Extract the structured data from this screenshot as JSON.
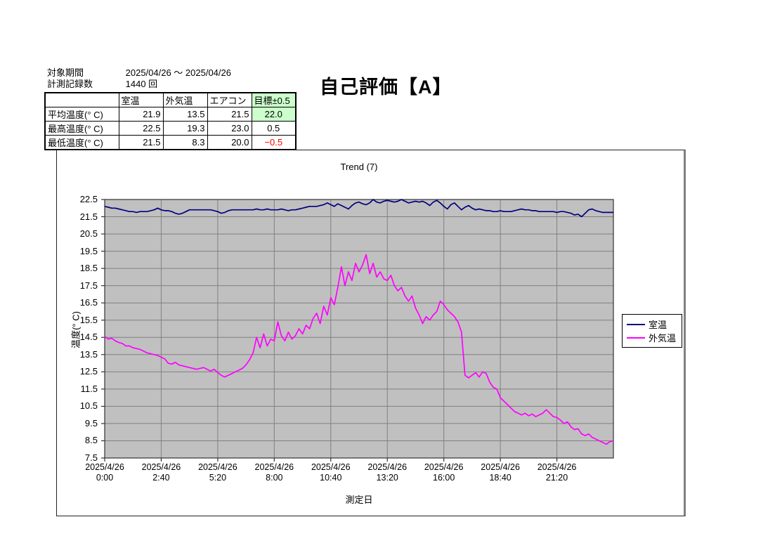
{
  "header": {
    "period_label": "対象期間",
    "period_value": "2025/04/26 ～ 2025/04/26",
    "count_label": "計測記録数",
    "count_value": "1440 回",
    "evaluation_title": "自己評価【A】"
  },
  "stats_table": {
    "col_headers": [
      "",
      "室温",
      "外気温",
      "エアコン",
      "目標±0.5"
    ],
    "rows": [
      {
        "label": "平均温度(° C)",
        "room": "21.9",
        "outside": "13.5",
        "aircon": "21.5",
        "target": "22.0"
      },
      {
        "label": "最高温度(° C)",
        "room": "22.5",
        "outside": "19.3",
        "aircon": "23.0",
        "target": "0.5"
      },
      {
        "label": "最低温度(° C)",
        "room": "21.5",
        "outside": "8.3",
        "aircon": "20.0",
        "target": "−0.5"
      }
    ],
    "colors": {
      "target_bg": "#CCFFCC",
      "negative_text": "#FF0000"
    }
  },
  "chart_data": {
    "type": "line",
    "title": "Trend (7)",
    "xlabel": "測定日",
    "ylabel": "温度(° C)",
    "ylim": [
      7.5,
      22.5
    ],
    "ytick_step": 1.0,
    "y_ticks": [
      "22.5",
      "21.5",
      "20.5",
      "19.5",
      "18.5",
      "17.5",
      "16.5",
      "15.5",
      "14.5",
      "13.5",
      "12.5",
      "11.5",
      "10.5",
      "9.5",
      "8.5",
      "7.5"
    ],
    "x_total_minutes": 1440,
    "x_ticks": [
      {
        "date": "2025/4/26",
        "time": "0:00",
        "minutes": 0
      },
      {
        "date": "2025/4/26",
        "time": "2:40",
        "minutes": 160
      },
      {
        "date": "2025/4/26",
        "time": "5:20",
        "minutes": 320
      },
      {
        "date": "2025/4/26",
        "time": "8:00",
        "minutes": 480
      },
      {
        "date": "2025/4/26",
        "time": "10:40",
        "minutes": 640
      },
      {
        "date": "2025/4/26",
        "time": "13:20",
        "minutes": 800
      },
      {
        "date": "2025/4/26",
        "time": "16:00",
        "minutes": 960
      },
      {
        "date": "2025/4/26",
        "time": "18:40",
        "minutes": 1120
      },
      {
        "date": "2025/4/26",
        "time": "21:20",
        "minutes": 1280
      }
    ],
    "grid": true,
    "legend_position": "right",
    "colors": {
      "plot_bg": "#C0C0C0",
      "grid": "#808080",
      "frame": "#333333"
    },
    "sample_interval_minutes": 10,
    "series": [
      {
        "id": "room-temp",
        "name": "室温",
        "color": "#000080",
        "values": [
          22.1,
          22.05,
          22.0,
          22.0,
          21.95,
          21.9,
          21.85,
          21.8,
          21.8,
          21.75,
          21.8,
          21.8,
          21.8,
          21.85,
          21.9,
          22.0,
          21.9,
          21.85,
          21.85,
          21.8,
          21.7,
          21.65,
          21.7,
          21.8,
          21.9,
          21.9,
          21.9,
          21.9,
          21.9,
          21.9,
          21.9,
          21.85,
          21.8,
          21.7,
          21.75,
          21.85,
          21.9,
          21.9,
          21.9,
          21.9,
          21.9,
          21.9,
          21.9,
          21.95,
          21.9,
          21.9,
          21.95,
          21.9,
          21.9,
          21.9,
          21.95,
          21.9,
          21.85,
          21.9,
          21.9,
          21.95,
          22.0,
          22.05,
          22.1,
          22.1,
          22.1,
          22.15,
          22.2,
          22.3,
          22.2,
          22.1,
          22.25,
          22.15,
          22.05,
          21.95,
          22.15,
          22.3,
          22.35,
          22.25,
          22.2,
          22.3,
          22.5,
          22.35,
          22.3,
          22.4,
          22.45,
          22.4,
          22.35,
          22.4,
          22.5,
          22.4,
          22.3,
          22.35,
          22.4,
          22.35,
          22.4,
          22.3,
          22.15,
          22.35,
          22.45,
          22.3,
          22.1,
          21.95,
          22.2,
          22.3,
          22.1,
          21.9,
          22.05,
          22.15,
          22.0,
          21.9,
          21.95,
          21.9,
          21.85,
          21.85,
          21.8,
          21.8,
          21.85,
          21.8,
          21.8,
          21.8,
          21.85,
          21.9,
          21.95,
          21.9,
          21.9,
          21.85,
          21.85,
          21.8,
          21.8,
          21.8,
          21.8,
          21.8,
          21.75,
          21.8,
          21.8,
          21.75,
          21.7,
          21.6,
          21.65,
          21.5,
          21.7,
          21.9,
          21.95,
          21.85,
          21.8,
          21.75,
          21.75,
          21.75,
          21.75
        ]
      },
      {
        "id": "outside-temp",
        "name": "外気温",
        "color": "#FF00FF",
        "values": [
          14.55,
          14.4,
          14.45,
          14.3,
          14.2,
          14.15,
          14.0,
          14.0,
          13.9,
          13.85,
          13.8,
          13.7,
          13.6,
          13.55,
          13.5,
          13.45,
          13.35,
          13.25,
          13.0,
          12.95,
          13.05,
          12.9,
          12.85,
          12.8,
          12.75,
          12.7,
          12.65,
          12.7,
          12.75,
          12.65,
          12.55,
          12.65,
          12.45,
          12.3,
          12.2,
          12.3,
          12.4,
          12.5,
          12.6,
          12.7,
          12.9,
          13.2,
          13.6,
          14.5,
          13.9,
          14.7,
          14.0,
          14.4,
          14.3,
          15.4,
          14.6,
          14.3,
          14.8,
          14.4,
          14.6,
          15.0,
          14.7,
          15.2,
          15.0,
          15.6,
          15.9,
          15.3,
          16.3,
          15.8,
          16.8,
          16.4,
          17.4,
          18.6,
          17.5,
          18.3,
          17.8,
          18.8,
          18.3,
          18.7,
          19.3,
          18.2,
          18.8,
          18.0,
          18.3,
          17.9,
          17.8,
          18.1,
          17.5,
          17.2,
          17.4,
          16.9,
          16.6,
          16.9,
          16.2,
          15.8,
          15.3,
          15.7,
          15.5,
          15.8,
          16.0,
          16.6,
          16.4,
          16.1,
          15.9,
          15.7,
          15.4,
          14.8,
          12.3,
          12.15,
          12.3,
          12.45,
          12.2,
          12.5,
          12.4,
          11.9,
          11.6,
          11.5,
          11.0,
          10.8,
          10.6,
          10.4,
          10.2,
          10.1,
          10.0,
          10.1,
          9.95,
          10.05,
          9.9,
          10.0,
          10.1,
          10.3,
          10.1,
          9.9,
          9.85,
          9.7,
          9.5,
          9.6,
          9.3,
          9.15,
          9.2,
          8.9,
          8.8,
          8.9,
          8.7,
          8.6,
          8.5,
          8.4,
          8.3,
          8.45,
          8.5
        ]
      }
    ]
  }
}
